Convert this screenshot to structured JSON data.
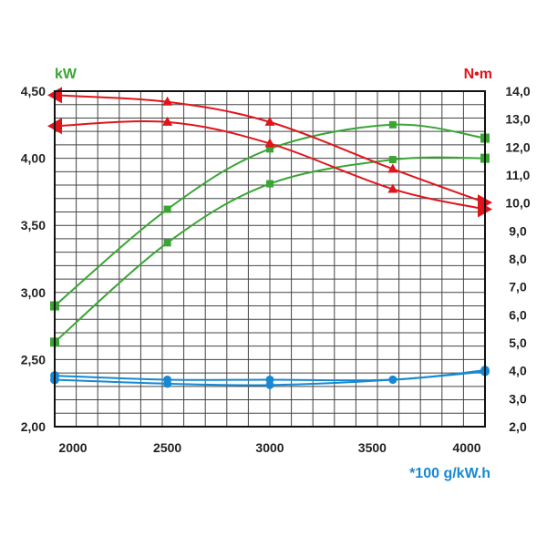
{
  "chart_data": {
    "type": "line",
    "x_ticks": [
      2000,
      2500,
      3000,
      3500,
      4000
    ],
    "x_ticks_text": [
      "2000",
      "2500",
      "3000",
      "3500",
      "4000"
    ],
    "xlim": [
      1950,
      4050
    ],
    "left_axis": {
      "label": "kW",
      "ylim": [
        2.0,
        4.5
      ],
      "ticks": [
        2.0,
        2.5,
        3.0,
        3.5,
        4.0,
        4.5
      ],
      "ticks_text": [
        "2,00",
        "2,50",
        "3,00",
        "3,50",
        "4,00",
        "4,50"
      ]
    },
    "right_axis": {
      "label": "N•m",
      "ylim": [
        2.0,
        14.0
      ],
      "ticks": [
        2,
        3,
        4,
        5,
        6,
        7,
        8,
        9,
        10,
        11,
        12,
        13,
        14
      ],
      "ticks_text": [
        "2,0",
        "3,0",
        "4,0",
        "5,0",
        "6,0",
        "7,0",
        "8,0",
        "9,0",
        "10,0",
        "11,0",
        "12,0",
        "13,0",
        "14,0"
      ]
    },
    "bottom_note": "*100 g/kW.h",
    "grid": true,
    "colors": {
      "power": "#3aa535",
      "torque": "#e0151b",
      "consumption": "#1689d2"
    },
    "series": [
      {
        "kind": "power",
        "marker": "square",
        "axis": "left",
        "x": [
          1950,
          2500,
          3000,
          3600,
          4050
        ],
        "y": [
          2.9,
          3.62,
          4.07,
          4.25,
          4.15
        ]
      },
      {
        "kind": "power",
        "marker": "square",
        "axis": "left",
        "x": [
          1950,
          2500,
          3000,
          3600,
          4050
        ],
        "y": [
          2.63,
          3.37,
          3.81,
          3.99,
          4.0
        ]
      },
      {
        "kind": "torque",
        "marker": "triangle",
        "axis": "left",
        "x": [
          1950,
          2500,
          3000,
          3600,
          4050
        ],
        "y": [
          4.47,
          4.42,
          4.27,
          3.92,
          3.67
        ]
      },
      {
        "kind": "torque",
        "marker": "triangle",
        "axis": "left",
        "x": [
          1950,
          2500,
          3000,
          3600,
          4050
        ],
        "y": [
          4.24,
          4.27,
          4.11,
          3.77,
          3.62
        ]
      },
      {
        "kind": "consumption",
        "marker": "circle",
        "axis": "left",
        "x": [
          1950,
          2500,
          3000,
          3600,
          4050
        ],
        "y": [
          2.38,
          2.35,
          2.35,
          2.35,
          2.42
        ]
      },
      {
        "kind": "consumption",
        "marker": "circle",
        "axis": "left",
        "x": [
          1950,
          2500,
          3000,
          3600,
          4050
        ],
        "y": [
          2.35,
          2.32,
          2.31,
          2.35,
          2.41
        ]
      }
    ]
  }
}
